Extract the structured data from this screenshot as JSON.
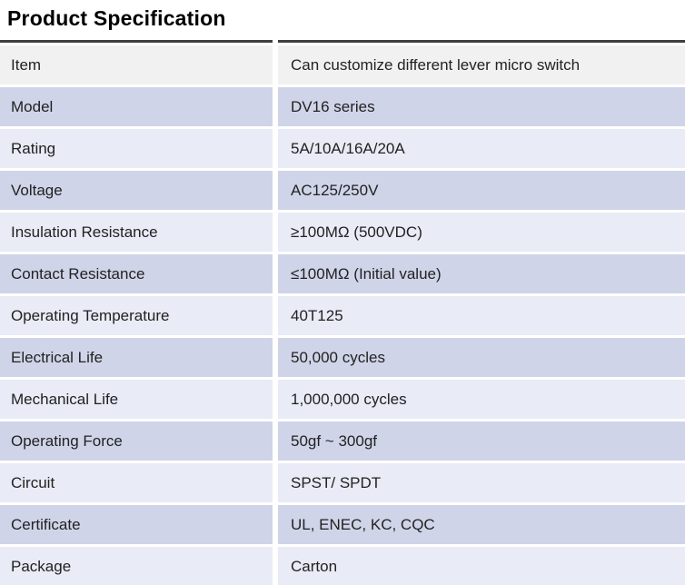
{
  "title": "Product Specification",
  "colors": {
    "row_gray": "#f1f1f1",
    "row_dark": "#d0d4e8",
    "row_light": "#e9ebf6",
    "top_border": "#3f3f3f",
    "text": "#222222"
  },
  "table": {
    "rows": [
      {
        "label": "Item",
        "value": "Can customize different lever micro switch",
        "variant": "gray"
      },
      {
        "label": "Model",
        "value": "DV16 series",
        "variant": "dark"
      },
      {
        "label": "Rating",
        "value": "5A/10A/16A/20A",
        "variant": "light"
      },
      {
        "label": "Voltage",
        "value": "AC125/250V",
        "variant": "dark"
      },
      {
        "label": "Insulation Resistance",
        "value": "≥100MΩ (500VDC)",
        "variant": "light"
      },
      {
        "label": "Contact Resistance",
        "value": "≤100MΩ (Initial value)",
        "variant": "dark"
      },
      {
        "label": "Operating Temperature",
        "value": "40T125",
        "variant": "light"
      },
      {
        "label": "Electrical Life",
        "value": "50,000 cycles",
        "variant": "dark"
      },
      {
        "label": "Mechanical Life",
        "value": "1,000,000 cycles",
        "variant": "light"
      },
      {
        "label": "Operating Force",
        "value": "50gf ~ 300gf",
        "variant": "dark"
      },
      {
        "label": "Circuit",
        "value": "SPST/ SPDT",
        "variant": "light"
      },
      {
        "label": "Certificate",
        "value": "UL, ENEC, KC, CQC",
        "variant": "dark"
      },
      {
        "label": "Package",
        "value": "Carton",
        "variant": "light"
      }
    ]
  }
}
